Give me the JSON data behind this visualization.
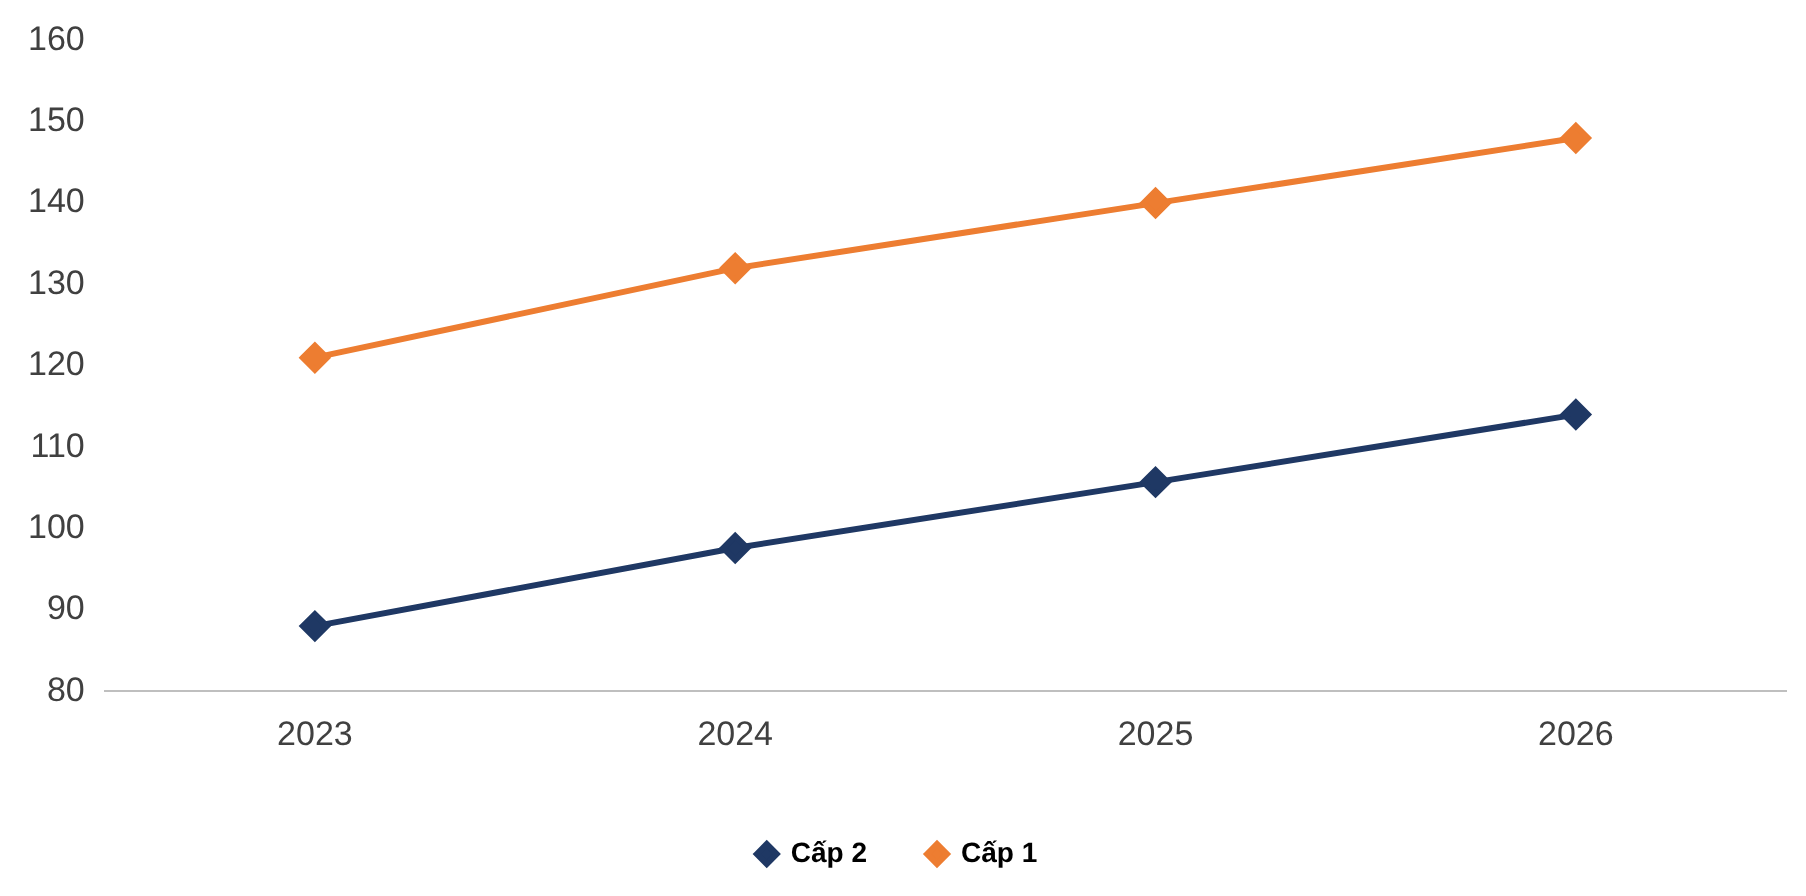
{
  "chart_data": {
    "type": "line",
    "categories": [
      "2023",
      "2024",
      "2025",
      "2026"
    ],
    "series": [
      {
        "name": "Cấp 2",
        "color": "#1f3864",
        "values": [
          88,
          97.6,
          105.7,
          114
        ]
      },
      {
        "name": "Cấp 1",
        "color": "#ed7d31",
        "values": [
          121,
          132,
          140,
          148
        ]
      }
    ],
    "ylim": [
      80,
      160
    ],
    "yticks": [
      80,
      90,
      100,
      110,
      120,
      130,
      140,
      150,
      160
    ],
    "grid": false,
    "legend": "bottom",
    "marker": "diamond",
    "line_style": "solid"
  }
}
